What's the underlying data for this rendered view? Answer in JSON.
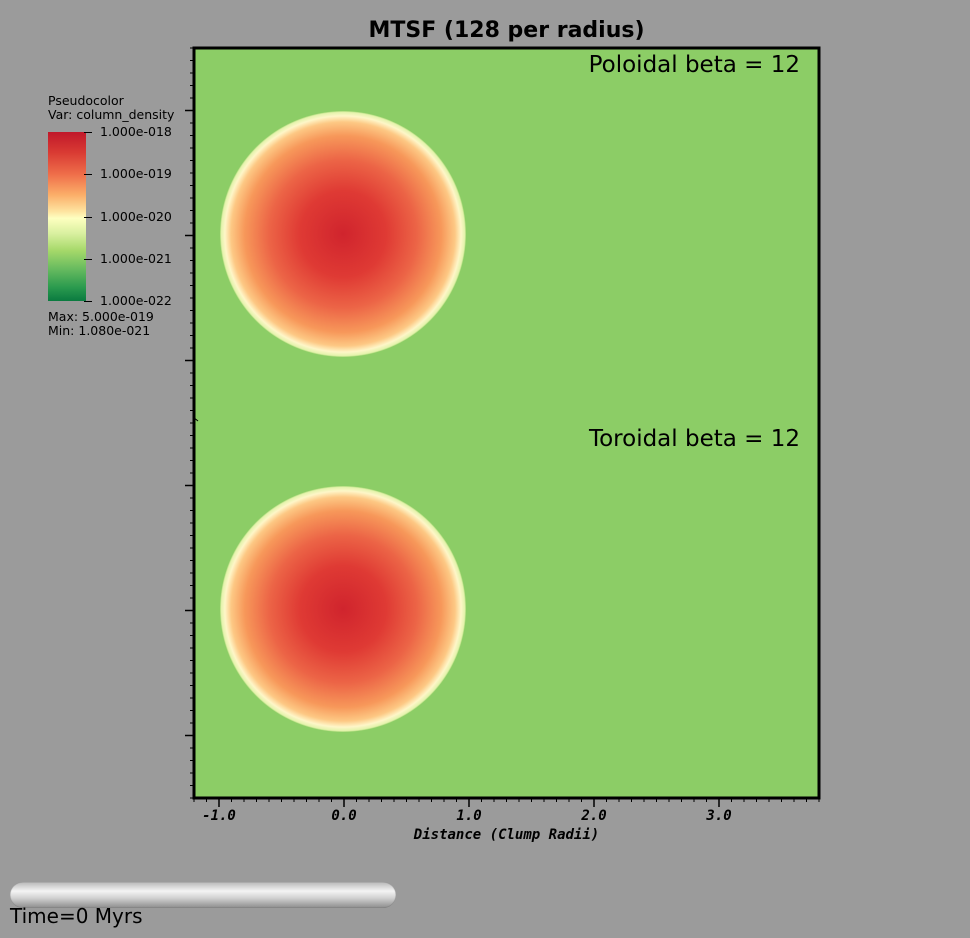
{
  "chart_data": {
    "type": "heatmap",
    "title": "MTSF (128 per radius)",
    "xlabel": "Distance (Clump Radii)",
    "ylabel": "",
    "xlim": [
      -1.2,
      3.8
    ],
    "x_ticks": [
      -1.0,
      0.0,
      1.0,
      2.0,
      3.0
    ],
    "x_tick_labels": [
      "-1.0",
      "0.0",
      "1.0",
      "2.0",
      "3.0"
    ],
    "panels": [
      {
        "label": "Poloidal beta = 12",
        "clump_center": [
          0.0,
          0.0
        ],
        "clump_radius": 1.0
      },
      {
        "label": "Toroidal beta = 12",
        "clump_center": [
          0.0,
          0.0
        ],
        "clump_radius": 1.0
      }
    ],
    "colorbar": {
      "title": "Pseudocolor",
      "variable": "Var: column_density",
      "scale": "log",
      "colormap": "RdYlGn reversed",
      "ticks": [
        "1.000e-018",
        "1.000e-019",
        "1.000e-020",
        "1.000e-021",
        "1.000e-022"
      ],
      "max_label": "Max:  5.000e-019",
      "min_label": "Min:  1.080e-021"
    },
    "background_color": "#8ccd66"
  },
  "time_label": "Time=0 Myrs",
  "colors": {
    "page_background": "#9b9b9b",
    "plot_background": "#8ccd66",
    "clump_center": "#d0242d",
    "clump_edge": "#fef6c8"
  }
}
